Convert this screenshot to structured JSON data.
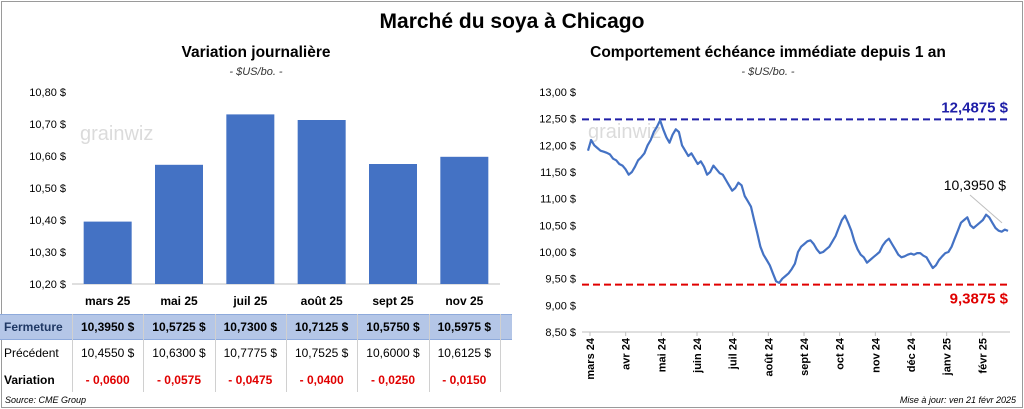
{
  "page": {
    "title": "Marché du soya à Chicago",
    "source": "Source: CME Group",
    "update": "Mise à jour: ven 21 févr 2025",
    "watermark": "grainwiz"
  },
  "chart_data": [
    {
      "type": "bar",
      "title": "Variation journalière",
      "subtitle": "- $US/bo. -",
      "categories": [
        "mars 25",
        "mai 25",
        "juil 25",
        "août 25",
        "sept 25",
        "nov 25"
      ],
      "series": [
        {
          "values": [
            10.395,
            10.5725,
            10.73,
            10.7125,
            10.575,
            10.5975
          ]
        }
      ],
      "ylim": [
        10.2,
        10.8
      ],
      "yticks": [
        "10,20 $",
        "10,30 $",
        "10,40 $",
        "10,50 $",
        "10,60 $",
        "10,70 $",
        "10,80 $"
      ],
      "grid": false,
      "color": "#4472c4"
    },
    {
      "type": "line",
      "title": "Comportement échéance immédiate depuis 1 an",
      "subtitle": "- $US/bo. -",
      "ylim": [
        8.5,
        13.0
      ],
      "yticks": [
        "8,50 $",
        "9,00 $",
        "9,50 $",
        "10,00 $",
        "10,50 $",
        "11,00 $",
        "11,50 $",
        "12,00 $",
        "12,50 $",
        "13,00 $"
      ],
      "xticks": [
        "mars 24",
        "avr 24",
        "mai 24",
        "juin 24",
        "juil 24",
        "août 24",
        "sept 24",
        "oct 24",
        "nov 24",
        "déc 24",
        "janv 25",
        "févr 25"
      ],
      "line_color": "#4472c4",
      "high": {
        "value": 12.4875,
        "label": "12,4875 $",
        "color": "#1f1fa8"
      },
      "low": {
        "value": 9.3875,
        "label": "9,3875 $",
        "color": "#e00000"
      },
      "last": {
        "value": 10.395,
        "label": "10,3950 $"
      },
      "values": [
        11.9,
        12.1,
        12.0,
        11.95,
        11.9,
        11.88,
        11.86,
        11.83,
        11.75,
        11.72,
        11.65,
        11.62,
        11.55,
        11.45,
        11.5,
        11.6,
        11.72,
        11.78,
        11.85,
        12.0,
        12.1,
        12.25,
        12.35,
        12.47,
        12.3,
        12.15,
        12.05,
        12.2,
        12.3,
        12.25,
        12.0,
        11.9,
        11.8,
        11.85,
        11.75,
        11.65,
        11.7,
        11.6,
        11.45,
        11.5,
        11.62,
        11.55,
        11.48,
        11.45,
        11.35,
        11.25,
        11.15,
        11.2,
        11.3,
        11.25,
        11.05,
        10.95,
        10.85,
        10.6,
        10.35,
        10.1,
        9.95,
        9.85,
        9.75,
        9.6,
        9.45,
        9.42,
        9.5,
        9.55,
        9.6,
        9.68,
        9.78,
        10.0,
        10.1,
        10.15,
        10.2,
        10.22,
        10.15,
        10.05,
        9.98,
        10.0,
        10.05,
        10.1,
        10.2,
        10.3,
        10.45,
        10.6,
        10.68,
        10.55,
        10.4,
        10.2,
        10.05,
        9.95,
        9.9,
        9.8,
        9.85,
        9.9,
        9.95,
        10.0,
        10.12,
        10.2,
        10.25,
        10.15,
        10.05,
        9.95,
        9.9,
        9.92,
        9.95,
        9.97,
        9.95,
        9.98,
        9.98,
        9.93,
        9.9,
        9.8,
        9.7,
        9.75,
        9.85,
        9.92,
        9.98,
        10.0,
        10.1,
        10.25,
        10.4,
        10.55,
        10.6,
        10.65,
        10.5,
        10.45,
        10.5,
        10.55,
        10.6,
        10.7,
        10.65,
        10.55,
        10.45,
        10.4,
        10.38,
        10.42,
        10.395
      ]
    }
  ],
  "table": {
    "rows": [
      {
        "label": "Fermeture",
        "cells": [
          "10,3950",
          "10,5725",
          "10,7300",
          "10,7125",
          "10,5750",
          "10,5975"
        ],
        "unit": "$"
      },
      {
        "label": "Précédent",
        "cells": [
          "10,4550",
          "10,6300",
          "10,7775",
          "10,7525",
          "10,6000",
          "10,6125"
        ],
        "unit": "$"
      },
      {
        "label": "Variation",
        "cells": [
          "- 0,0600",
          "- 0,0575",
          "- 0,0475",
          "- 0,0400",
          "- 0,0250",
          "- 0,0150"
        ],
        "unit": ""
      }
    ]
  }
}
